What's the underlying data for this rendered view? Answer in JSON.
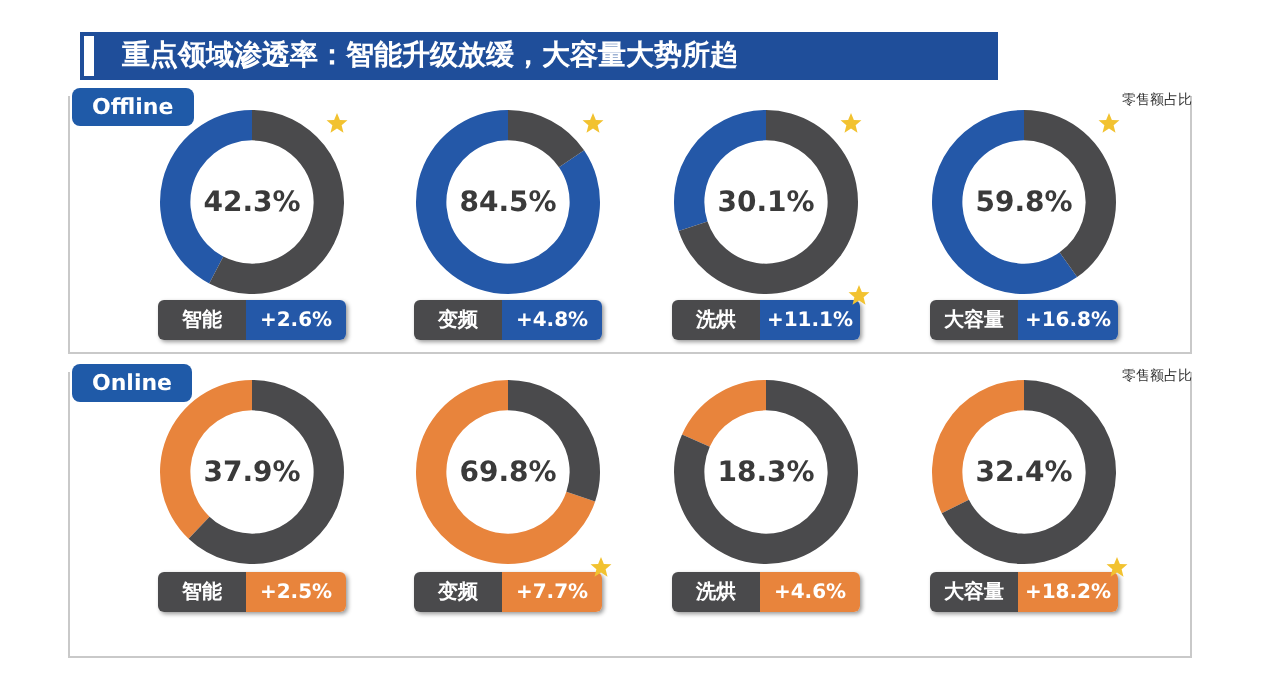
{
  "chart_data": [
    {
      "type": "other",
      "title": "重点领域渗透率：智能升级放缓，大容量大势所趋"
    },
    {
      "type": "other",
      "title": "Offline",
      "annotations": [
        "零售额占比"
      ]
    },
    {
      "type": "donut",
      "title": "智能",
      "categories": [
        null,
        null
      ],
      "values": [
        42.3,
        57.7
      ],
      "colors": [
        "#2458a8",
        "#4a4a4c"
      ],
      "annotations": [
        "42.3%",
        "+2.6%"
      ]
    },
    {
      "type": "donut",
      "title": "变频",
      "categories": [
        null,
        null
      ],
      "values": [
        84.5,
        15.5
      ],
      "colors": [
        "#2458a8",
        "#4a4a4c"
      ],
      "annotations": [
        "84.5%",
        "+4.8%"
      ]
    },
    {
      "type": "donut",
      "title": "洗烘",
      "categories": [
        null,
        null
      ],
      "values": [
        30.1,
        69.9
      ],
      "colors": [
        "#2458a8",
        "#4a4a4c"
      ],
      "annotations": [
        "30.1%",
        "+11.1%"
      ]
    },
    {
      "type": "donut",
      "title": "大容量",
      "categories": [
        null,
        null
      ],
      "values": [
        59.8,
        40.2
      ],
      "colors": [
        "#2458a8",
        "#4a4a4c"
      ],
      "annotations": [
        "59.8%",
        "+16.8%"
      ]
    },
    {
      "type": "other",
      "title": "Online",
      "annotations": [
        "零售额占比"
      ]
    },
    {
      "type": "donut",
      "title": "智能",
      "categories": [
        null,
        null
      ],
      "values": [
        37.9,
        62.1
      ],
      "colors": [
        "#e8843c",
        "#4a4a4c"
      ],
      "annotations": [
        "37.9%",
        "+2.5%"
      ]
    },
    {
      "type": "donut",
      "title": "变频",
      "categories": [
        null,
        null
      ],
      "values": [
        69.8,
        30.2
      ],
      "colors": [
        "#e8843c",
        "#4a4a4c"
      ],
      "annotations": [
        "69.8%",
        "+7.7%"
      ]
    },
    {
      "type": "donut",
      "title": "洗烘",
      "categories": [
        null,
        null
      ],
      "values": [
        18.3,
        81.7
      ],
      "colors": [
        "#e8843c",
        "#4a4a4c"
      ],
      "annotations": [
        "18.3%",
        "+4.6%"
      ]
    },
    {
      "type": "donut",
      "title": "大容量",
      "categories": [
        null,
        null
      ],
      "values": [
        32.4,
        67.6
      ],
      "colors": [
        "#e8843c",
        "#4a4a4c"
      ],
      "annotations": [
        "32.4%",
        "+18.2%"
      ]
    }
  ]
}
